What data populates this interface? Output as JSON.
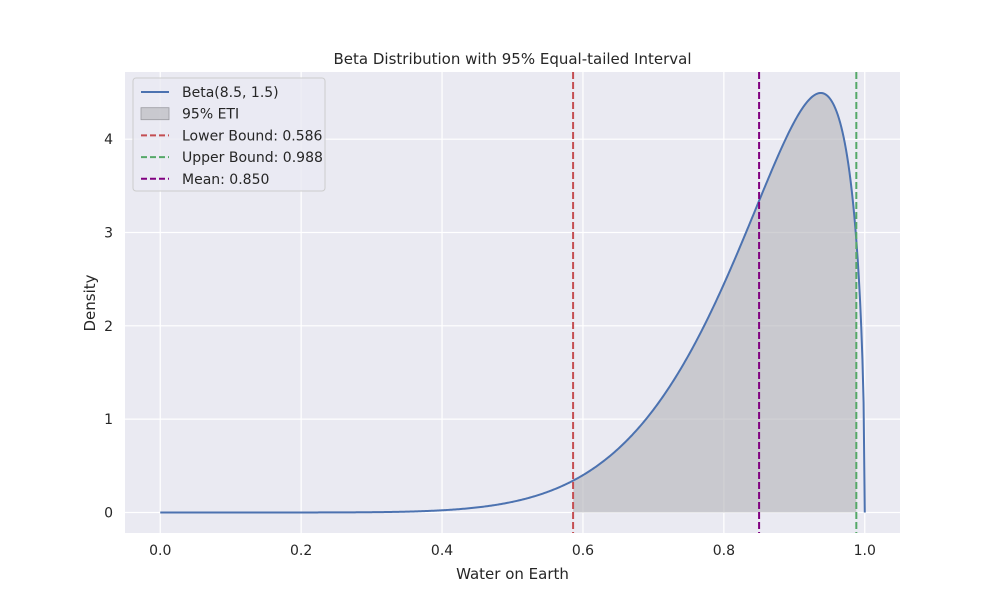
{
  "chart_data": {
    "type": "line",
    "title": "Beta Distribution with 95% Equal-tailed Interval",
    "xlabel": "Water on Earth",
    "ylabel": "Density",
    "xlim": [
      -0.05,
      1.05
    ],
    "ylim": [
      -0.22,
      4.72
    ],
    "x_ticks": [
      0.0,
      0.2,
      0.4,
      0.6,
      0.8,
      1.0
    ],
    "x_tick_labels": [
      "0.0",
      "0.2",
      "0.4",
      "0.6",
      "0.8",
      "1.0"
    ],
    "y_ticks": [
      0,
      1,
      2,
      3,
      4
    ],
    "y_tick_labels": [
      "0",
      "1",
      "2",
      "3",
      "4"
    ],
    "grid": true,
    "legend_position": "upper-left",
    "distribution": {
      "family": "Beta",
      "alpha": 8.5,
      "beta": 1.5,
      "x_range": [
        0.0,
        1.0
      ]
    },
    "series": [
      {
        "name": "Beta(8.5, 1.5)",
        "kind": "line",
        "color": "#4c72b0",
        "x": [
          0.0,
          0.1,
          0.2,
          0.3,
          0.4,
          0.5,
          0.55,
          0.586,
          0.6,
          0.65,
          0.7,
          0.75,
          0.8,
          0.85,
          0.9,
          0.94,
          0.96,
          0.98,
          0.988,
          0.995,
          1.0
        ],
        "y": [
          0.0,
          0.0,
          0.0,
          0.003,
          0.03,
          0.15,
          0.25,
          0.35,
          0.39,
          0.65,
          1.1,
          1.7,
          2.5,
          3.35,
          4.2,
          4.5,
          4.35,
          3.65,
          3.1,
          2.2,
          0.0
        ]
      },
      {
        "name": "95% ETI",
        "kind": "area",
        "color": "#b2b2b8",
        "x_range": [
          0.586,
          0.988
        ]
      },
      {
        "name": "Lower Bound: 0.586",
        "kind": "vline",
        "x": 0.586,
        "color": "#c44e52"
      },
      {
        "name": "Upper Bound: 0.988",
        "kind": "vline",
        "x": 0.988,
        "color": "#55a868"
      },
      {
        "name": "Mean: 0.850",
        "kind": "vline",
        "x": 0.85,
        "color": "#800080"
      }
    ]
  }
}
